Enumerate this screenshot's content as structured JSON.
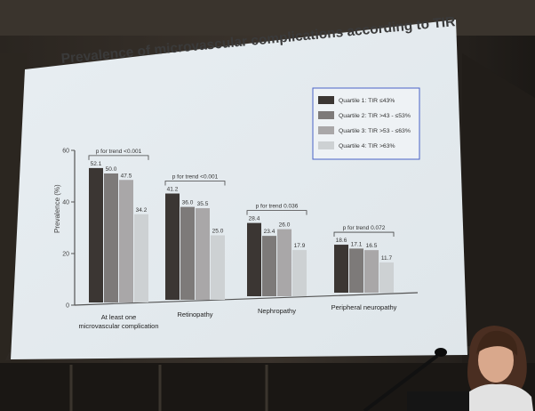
{
  "slide": {
    "title": "Prevalence of microvascular complications according to TIR"
  },
  "colors": {
    "quartile1": "#3b3633",
    "quartile2": "#7d7a79",
    "quartile3": "#a9a7a8",
    "quartile4": "#cdd1d3",
    "legend_border": "#4a63c8",
    "slide_bg": "#eef3f6"
  },
  "chart_data": {
    "type": "bar",
    "ylabel": "Prevalence (%)",
    "ylim": [
      0,
      60
    ],
    "yticks": [
      "0",
      "20",
      "40",
      "60"
    ],
    "categories": [
      "At least one microvascular complication",
      "Retinopathy",
      "Nephropathy",
      "Peripheral neuropathy"
    ],
    "category_labels": [
      [
        "At least one",
        "microvascular complication"
      ],
      [
        "Retinopathy"
      ],
      [
        "Nephropathy"
      ],
      [
        "Peripheral neuropathy"
      ]
    ],
    "series": [
      {
        "name": "Quartile 1: TIR ≤43%",
        "values": [
          52.1,
          41.2,
          28.4,
          18.6
        ],
        "labels": [
          "52.1",
          "41.2",
          "28.4",
          "18.6"
        ]
      },
      {
        "name": "Quartile 2: TIR >43 - ≤53%",
        "values": [
          50.0,
          36.0,
          23.4,
          17.1
        ],
        "labels": [
          "50.0",
          "36.0",
          "23.4",
          "17.1"
        ]
      },
      {
        "name": "Quartile 3: TIR >53 - ≤63%",
        "values": [
          47.5,
          35.5,
          26.0,
          16.5
        ],
        "labels": [
          "47.5",
          "35.5",
          "26.0",
          "16.5"
        ]
      },
      {
        "name": "Quartile 4: TIR >63%",
        "values": [
          34.2,
          25.0,
          17.9,
          11.7
        ],
        "labels": [
          "34.2",
          "25.0",
          "17.9",
          "11.7"
        ]
      }
    ],
    "annotations": [
      "p for trend <0.001",
      "p for trend <0.001",
      "p for trend 0.036",
      "p for trend 0.072"
    ],
    "legend": "top-right"
  }
}
